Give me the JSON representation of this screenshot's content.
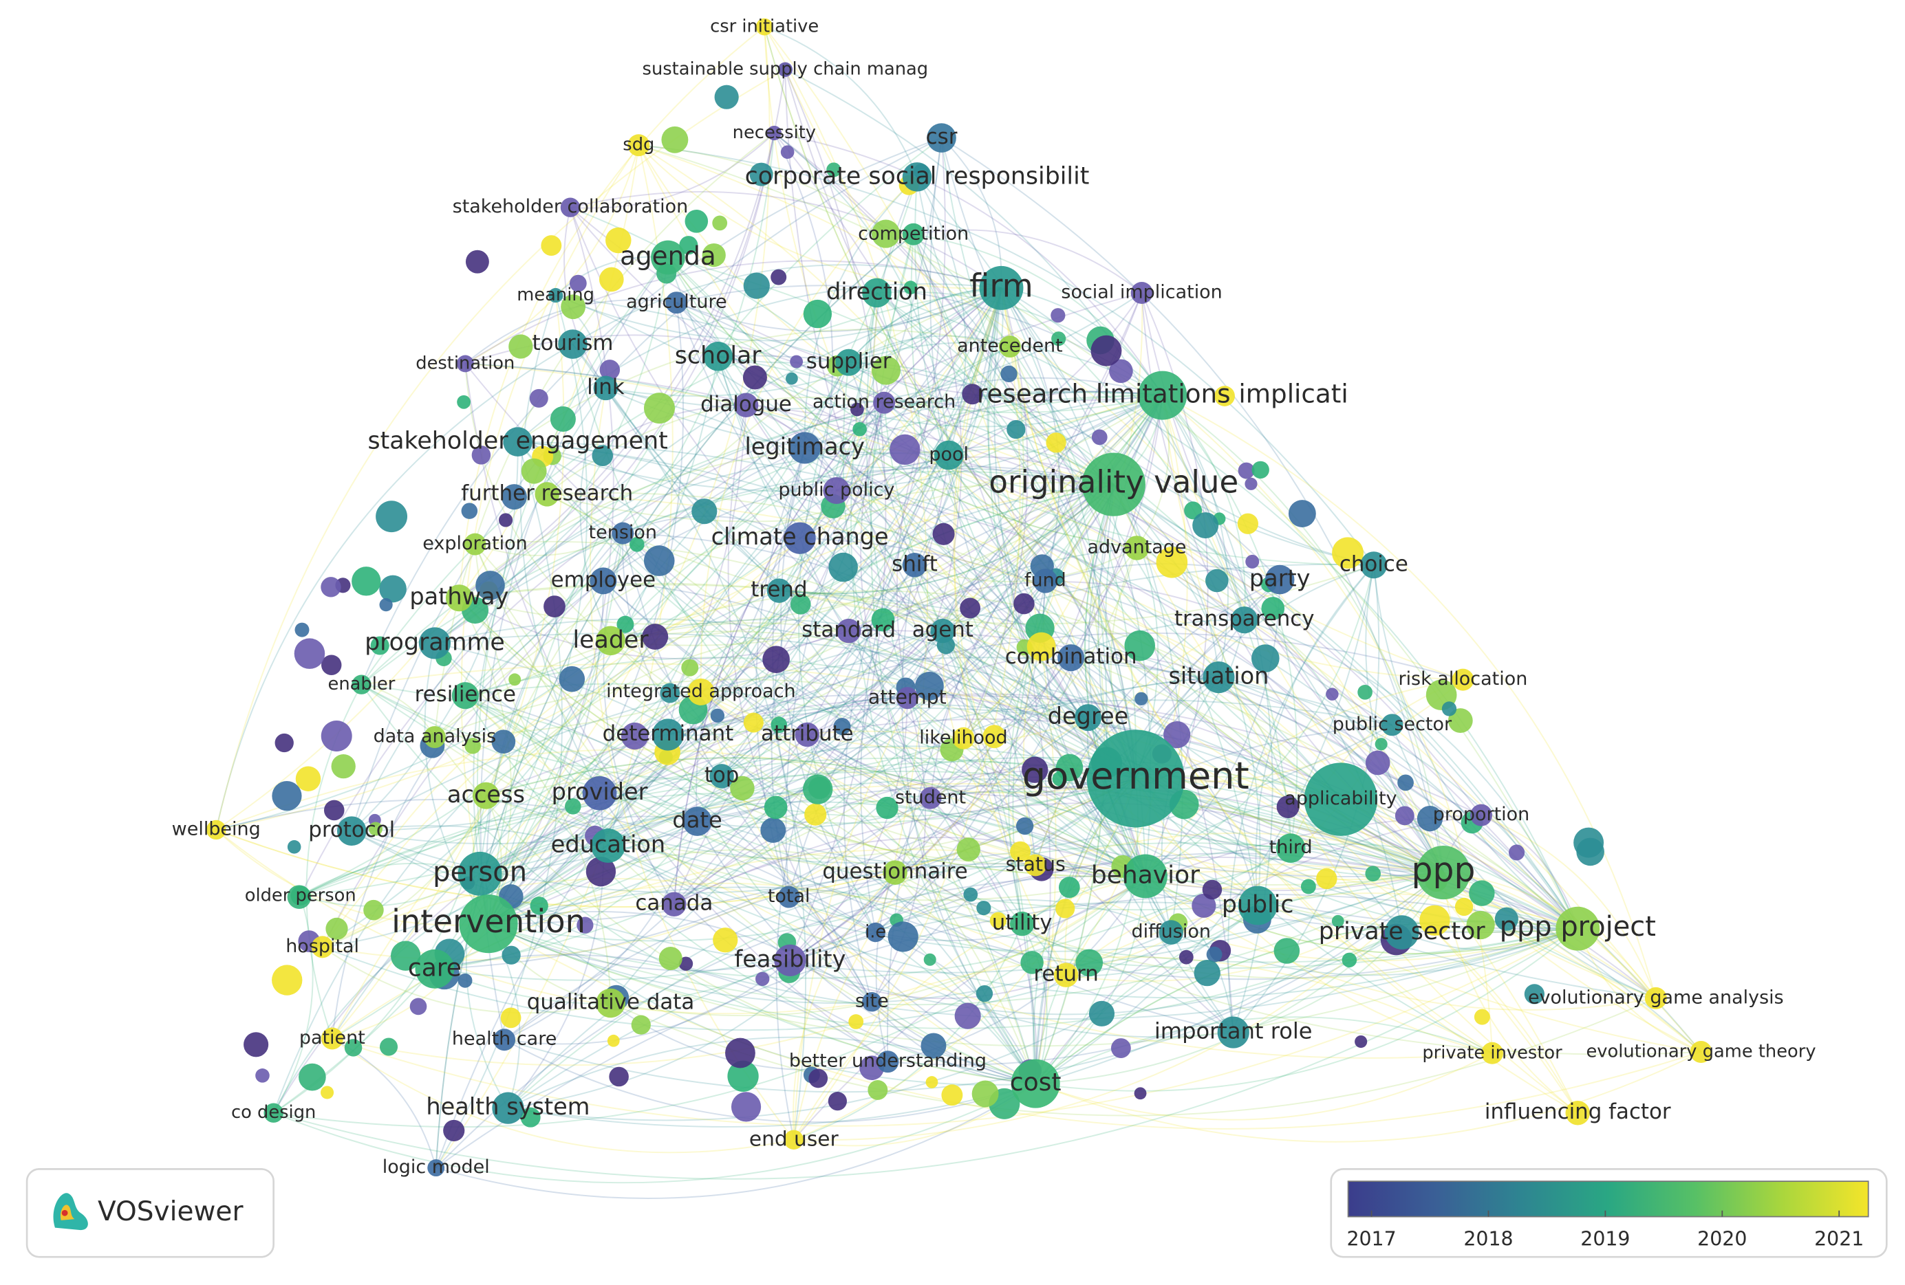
{
  "nodes": [
    {
      "label": "csr initiative",
      "color": "#f0e22e"
    },
    {
      "label": "sustainable supply chain manag",
      "color": "#5e55a6"
    },
    {
      "label": "necessity",
      "color": "#6a5cae"
    },
    {
      "label": "csr",
      "color": "#3a78a0"
    },
    {
      "label": "sdg",
      "color": "#f0e22e"
    },
    {
      "label": "corporate social responsibilit",
      "color": "#2c8f95"
    },
    {
      "label": "stakeholder collaboration",
      "color": "#6a5cae"
    },
    {
      "label": "competition",
      "color": "#35b37a"
    },
    {
      "label": "agenda",
      "color": "#3ab57a"
    },
    {
      "label": "firm",
      "color": "#2a9a90"
    },
    {
      "label": "social implication",
      "color": "#6a5cae"
    },
    {
      "label": "meaning",
      "color": "#2c8f95"
    },
    {
      "label": "agriculture",
      "color": "#3f6ea3"
    },
    {
      "label": "direction",
      "color": "#2ca48a"
    },
    {
      "label": "tourism",
      "color": "#2c8f95"
    },
    {
      "label": "destination",
      "color": "#6a5cae"
    },
    {
      "label": "scholar",
      "color": "#2a9a90"
    },
    {
      "label": "supplier",
      "color": "#2a9a90"
    },
    {
      "label": "antecedent",
      "color": "#9ad246"
    },
    {
      "label": "link",
      "color": "#2c8f95"
    },
    {
      "label": "dialogue",
      "color": "#6a5cae"
    },
    {
      "label": "action research",
      "color": "#6a5cae"
    },
    {
      "label": "research limitations implicati",
      "color": "#3ab57a"
    },
    {
      "label": "stakeholder engagement",
      "color": "#2c8f95"
    },
    {
      "label": "legitimacy",
      "color": "#3f6ea3"
    },
    {
      "label": "pool",
      "color": "#2a9a90"
    },
    {
      "label": "originality value",
      "color": "#44ba70"
    },
    {
      "label": "further research",
      "color": "#9ad246"
    },
    {
      "label": "public policy",
      "color": "#6a5cae"
    },
    {
      "label": "exploration",
      "color": "#9ad246"
    },
    {
      "label": "tension",
      "color": "#3f6ea3"
    },
    {
      "label": "climate change",
      "color": "#4a63a8"
    },
    {
      "label": "advantage",
      "color": "#9ad246"
    },
    {
      "label": "shift",
      "color": "#3f6ea3"
    },
    {
      "label": "choice",
      "color": "#2c8f95"
    },
    {
      "label": "party",
      "color": "#3f6ea3"
    },
    {
      "label": "fund",
      "color": "#3f6ea3"
    },
    {
      "label": "employee",
      "color": "#3f6ea3"
    },
    {
      "label": "pathway",
      "color": "#9ad246"
    },
    {
      "label": "trend",
      "color": "#2c8f95"
    },
    {
      "label": "transparency",
      "color": "#2c8f95"
    },
    {
      "label": "standard",
      "color": "#6a5cae"
    },
    {
      "label": "agent",
      "color": "#2c8f95"
    },
    {
      "label": "programme",
      "color": "#2c8f95"
    },
    {
      "label": "leader",
      "color": "#9ad246"
    },
    {
      "label": "combination",
      "color": "#3f6ea3"
    },
    {
      "label": "situation",
      "color": "#2c8f95"
    },
    {
      "label": "enabler",
      "color": "#35b37a"
    },
    {
      "label": "risk allocation",
      "color": "#f0e22e"
    },
    {
      "label": "resilience",
      "color": "#35b37a"
    },
    {
      "label": "integrated approach",
      "color": "#f0e22e"
    },
    {
      "label": "attempt",
      "color": "#6a5cae"
    },
    {
      "label": "degree",
      "color": "#2c8f95"
    },
    {
      "label": "public sector",
      "color": "#2c8f95"
    },
    {
      "label": "data analysis",
      "color": "#9ad246"
    },
    {
      "label": "determinant",
      "color": "#2c8f95"
    },
    {
      "label": "attribute",
      "color": "#6a5cae"
    },
    {
      "label": "likelihood",
      "color": "#f0e22e"
    },
    {
      "label": "government",
      "color": "#2aa48a"
    },
    {
      "label": "applicability",
      "color": "#2aa48a"
    },
    {
      "label": "top",
      "color": "#2c8f95"
    },
    {
      "label": "access",
      "color": "#9ad246"
    },
    {
      "label": "provider",
      "color": "#4a63a8"
    },
    {
      "label": "student",
      "color": "#6a5cae"
    },
    {
      "label": "proportion",
      "color": "#6a5cae"
    },
    {
      "label": "wellbeing",
      "color": "#f0e22e"
    },
    {
      "label": "protocol",
      "color": "#2c8f95"
    },
    {
      "label": "date",
      "color": "#3f6ea3"
    },
    {
      "label": "education",
      "color": "#2a9a90"
    },
    {
      "label": "third",
      "color": "#35b37a"
    },
    {
      "label": "status",
      "color": "#f0e22e"
    },
    {
      "label": "ppp",
      "color": "#55c068"
    },
    {
      "label": "person",
      "color": "#2a9a90"
    },
    {
      "label": "questionnaire",
      "color": "#9ad246"
    },
    {
      "label": "behavior",
      "color": "#35b37a"
    },
    {
      "label": "older person",
      "color": "#35b37a"
    },
    {
      "label": "canada",
      "color": "#6a5cae"
    },
    {
      "label": "total",
      "color": "#3f6ea3"
    },
    {
      "label": "intervention",
      "color": "#3cb876"
    },
    {
      "label": "public",
      "color": "#2a9a90"
    },
    {
      "label": "utility",
      "color": "#35b37a"
    },
    {
      "label": "diffusion",
      "color": "#2c8f95"
    },
    {
      "label": "private sector",
      "color": "#2c8f95"
    },
    {
      "label": "ppp project",
      "color": "#8fd14f"
    },
    {
      "label": "i.e",
      "color": "#3f6ea3"
    },
    {
      "label": "hospital",
      "color": "#f0e22e"
    },
    {
      "label": "care",
      "color": "#35b37a"
    },
    {
      "label": "feasibility",
      "color": "#6a5cae"
    },
    {
      "label": "return",
      "color": "#f0e22e"
    },
    {
      "label": "qualitative data",
      "color": "#9ad246"
    },
    {
      "label": "site",
      "color": "#3f6ea3"
    },
    {
      "label": "evolutionary game analysis",
      "color": "#f0e22e"
    },
    {
      "label": "patient",
      "color": "#f0e22e"
    },
    {
      "label": "health care",
      "color": "#3f6ea3"
    },
    {
      "label": "important role",
      "color": "#2c8f95"
    },
    {
      "label": "better understanding",
      "color": "#3f6ea3"
    },
    {
      "label": "private investor",
      "color": "#f0e22e"
    },
    {
      "label": "evolutionary game theory",
      "color": "#f0e22e"
    },
    {
      "label": "cost",
      "color": "#3cb876"
    },
    {
      "label": "co design",
      "color": "#35b37a"
    },
    {
      "label": "health system",
      "color": "#2c8f95"
    },
    {
      "label": "influencing factor",
      "color": "#f0e22e"
    },
    {
      "label": "end user",
      "color": "#f0e22e"
    },
    {
      "label": "logic model",
      "color": "#3f6ea3"
    }
  ],
  "legend": {
    "ticks": [
      2017,
      2018,
      2019,
      2020,
      2021
    ],
    "range": [
      2016.8,
      2021.25
    ],
    "colors": [
      "#3b3d8c",
      "#3a5f96",
      "#2e8591",
      "#2aa783",
      "#57c066",
      "#a9d63d",
      "#f4e52a"
    ]
  },
  "logo": "VOSviewer"
}
